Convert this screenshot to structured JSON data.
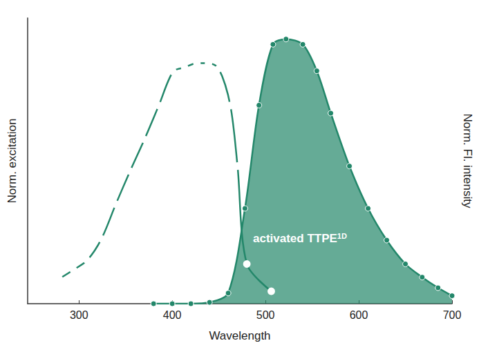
{
  "chart_data": {
    "type": "line",
    "x_label": "Wavelength",
    "y_label": "Norm. excitation",
    "y2_label": "Norm. Fl. intensity",
    "xlim": [
      245,
      700
    ],
    "xticks": [
      300,
      400,
      500,
      600,
      700
    ],
    "ylim": [
      0,
      1.08
    ],
    "yticks": [],
    "y2lim": [
      0,
      1.08
    ],
    "y2ticks": [],
    "tick_labels": "x",
    "grid": false,
    "annotation": {
      "text": "activated TTPE",
      "superscript": "1D"
    },
    "series": [
      {
        "type": "line",
        "marker": "open",
        "color": "#23876a",
        "axis": "y",
        "x": [
          278.8,
          294.1,
          308.8,
          324.1,
          339.5,
          354.8,
          370.2,
          385.6,
          400.9,
          413.3,
          426.5,
          438.9,
          449.9,
          462.3,
          470,
          480,
          506.2
        ],
        "values": [
          0.094,
          0.128,
          0.164,
          0.245,
          0.376,
          0.501,
          0.621,
          0.749,
          0.877,
          0.893,
          0.909,
          0.909,
          0.888,
          0.749,
          0.52,
          0.15,
          0.047
        ]
      },
      {
        "type": "area",
        "marker": "filled",
        "color": "#23876a",
        "axis": "y2",
        "x": [
          380,
          400,
          420,
          440,
          460,
          478,
          493,
          508,
          522,
          540,
          555,
          570,
          590,
          610,
          630,
          650,
          668,
          685,
          700
        ],
        "values": [
          0,
          0,
          0,
          0.005,
          0.04,
          0.36,
          0.75,
          0.98,
          1.0,
          0.98,
          0.88,
          0.72,
          0.52,
          0.36,
          0.24,
          0.15,
          0.1,
          0.06,
          0.03
        ]
      }
    ]
  }
}
